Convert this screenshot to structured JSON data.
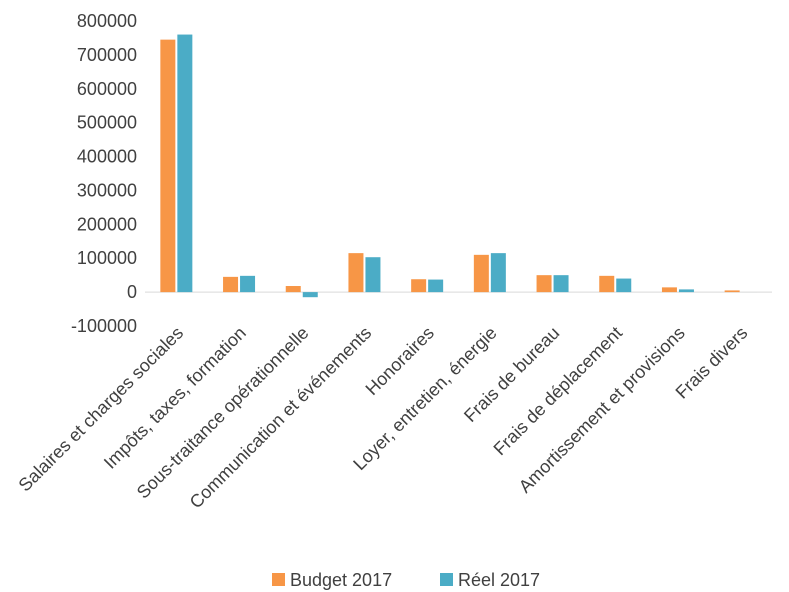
{
  "colors": {
    "budget": "#f79646",
    "reel": "#4bacc6",
    "axis": "#d9d9d9",
    "text": "#404040"
  },
  "chart_data": {
    "type": "bar",
    "categories": [
      "Salaires et charges sociales",
      "Impôts, taxes, formation",
      "Sous-traitance opérationnelle",
      "Communication et événements",
      "Honoraires",
      "Loyer, entretien, énergie",
      "Frais de bureau",
      "Frais de déplacement",
      "Amortissement et provisions",
      "Frais divers"
    ],
    "series": [
      {
        "name": "Budget 2017",
        "values": [
          745000,
          45000,
          18000,
          115000,
          38000,
          110000,
          50000,
          48000,
          14000,
          5000
        ]
      },
      {
        "name": "Réel 2017",
        "values": [
          760000,
          48000,
          -15000,
          103000,
          37000,
          115000,
          50000,
          40000,
          8000,
          0
        ]
      }
    ],
    "ylim": [
      -100000,
      800000
    ],
    "yticks": [
      "-100000",
      "0",
      "100000",
      "200000",
      "300000",
      "400000",
      "500000",
      "600000",
      "700000",
      "800000"
    ],
    "title": "",
    "xlabel": "",
    "ylabel": "",
    "legend": "bottom",
    "grid": false
  }
}
